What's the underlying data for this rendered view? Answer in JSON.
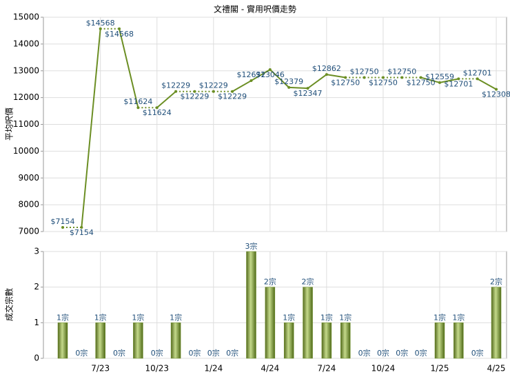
{
  "chart_data": [
    {
      "type": "line",
      "title": "文禮閣 - 實用呎價走勢",
      "y_label": "平均呎價",
      "color": "#6b8e23",
      "values": [
        7154,
        7154,
        14568,
        14568,
        11624,
        11624,
        12229,
        12229,
        12229,
        12229,
        12632,
        13046,
        12379,
        12347,
        12862,
        12750,
        12750,
        12750,
        12750,
        12750,
        12559,
        12701,
        12701,
        12308
      ],
      "value_labels": [
        "$7154",
        "$7154",
        "$14568",
        "$14568",
        "$11624",
        "$11624",
        "$12229",
        "$12229",
        "$12229",
        "$12229",
        "$12632",
        "$13046",
        "$12379",
        "$12347",
        "$12862",
        "$12750",
        "$12750",
        "$12750",
        "$12750",
        "$12750",
        "$12559",
        "$12701",
        "$12701",
        "$12308"
      ],
      "ylim": [
        7000,
        15000
      ],
      "yticks": [
        7000,
        8000,
        9000,
        10000,
        11000,
        12000,
        13000,
        14000,
        15000
      ],
      "grid": true
    },
    {
      "type": "bar",
      "y_label": "成交宗數",
      "color": "#6b8e23",
      "categories": [
        null,
        null,
        "7/23",
        null,
        null,
        "10/23",
        null,
        null,
        "1/24",
        null,
        null,
        "4/24",
        null,
        null,
        "7/24",
        null,
        null,
        "10/24",
        null,
        null,
        "1/25",
        null,
        null,
        "4/25"
      ],
      "values": [
        1,
        0,
        1,
        0,
        1,
        0,
        1,
        0,
        0,
        0,
        3,
        2,
        1,
        2,
        1,
        1,
        0,
        0,
        0,
        0,
        1,
        1,
        0,
        2
      ],
      "value_labels": [
        "1宗",
        "0宗",
        "1宗",
        "0宗",
        "1宗",
        "0宗",
        "1宗",
        "0宗",
        "0宗",
        "0宗",
        "3宗",
        "2宗",
        "1宗",
        "2宗",
        "1宗",
        "1宗",
        "0宗",
        "0宗",
        "0宗",
        "0宗",
        "1宗",
        "1宗",
        "0宗",
        "2宗"
      ],
      "ylim": [
        0,
        3
      ],
      "yticks": [
        0,
        1,
        2,
        3
      ],
      "grid": true
    }
  ]
}
